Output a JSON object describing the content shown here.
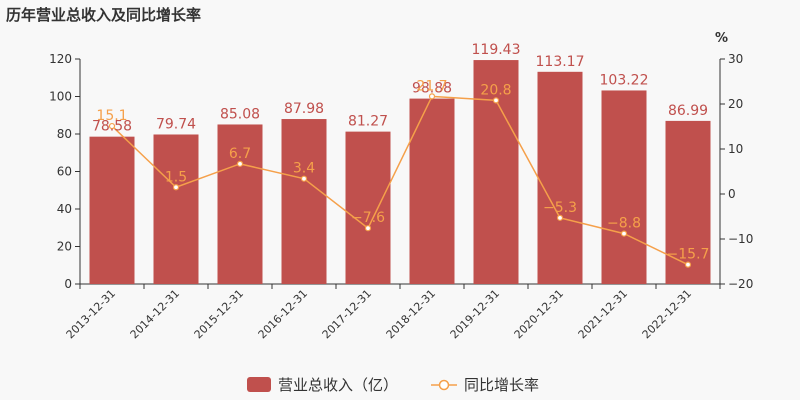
{
  "chart_data": {
    "type": "bar",
    "title": "历年营业总收入及同比增长率",
    "categories": [
      "2013-12-31",
      "2014-12-31",
      "2015-12-31",
      "2016-12-31",
      "2017-12-31",
      "2018-12-31",
      "2019-12-31",
      "2020-12-31",
      "2021-12-31",
      "2022-12-31"
    ],
    "series": [
      {
        "name": "营业总收入（亿）",
        "type": "bar",
        "axis": "left",
        "color": "#c0504d",
        "values": [
          78.58,
          79.74,
          85.08,
          87.98,
          81.27,
          98.88,
          119.43,
          113.17,
          103.22,
          86.99
        ],
        "labels": [
          "78.58",
          "79.74",
          "85.08",
          "87.98",
          "81.27",
          "98.88",
          "119.43",
          "113.17",
          "103.22",
          "86.99"
        ]
      },
      {
        "name": "同比增长率",
        "type": "line",
        "axis": "right",
        "color": "#f5a04a",
        "values": [
          15.1,
          1.5,
          6.7,
          3.4,
          -7.6,
          21.7,
          20.8,
          -5.3,
          -8.8,
          -15.7
        ],
        "labels": [
          "15.1",
          "1.5",
          "6.7",
          "3.4",
          "−7.6",
          "21.7",
          "20.8",
          "−5.3",
          "−8.8",
          "−15.7"
        ]
      }
    ],
    "yaxis_left": {
      "range": [
        0,
        120
      ],
      "ticks": [
        0,
        20,
        40,
        60,
        80,
        100,
        120
      ]
    },
    "yaxis_right": {
      "range": [
        -20,
        30
      ],
      "ticks": [
        -20,
        -10,
        0,
        10,
        20,
        30
      ],
      "tick_labels": [
        "−20",
        "−10",
        "0",
        "10",
        "20",
        "30"
      ],
      "unit": "%"
    },
    "legend_position": "bottom-center",
    "grid": false
  }
}
